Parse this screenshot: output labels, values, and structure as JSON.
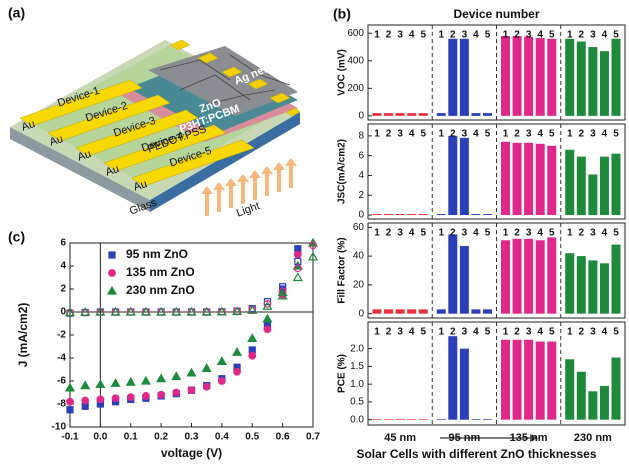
{
  "diagram": {
    "panel_label": "(a)",
    "layers": [
      "Ag network",
      "ZnO",
      "P3HT:PCBM",
      "PEDOT:PSS",
      "Glass"
    ],
    "electrode": "Au",
    "devices": [
      "Device-1",
      "Device-2",
      "Device-3",
      "Device-4",
      "Device-5"
    ],
    "light": "Light"
  },
  "chart_data": [
    {
      "type": "bar",
      "panel_label": "(b)",
      "title": "Device number",
      "ylabel": "VOC (mV)",
      "categories": [
        "1",
        "2",
        "3",
        "4",
        "5"
      ],
      "series": [
        {
          "color": "#e8303a",
          "values": [
            20,
            20,
            20,
            20,
            20
          ]
        },
        {
          "color": "#2b3fb8",
          "values": [
            20,
            560,
            560,
            20,
            20
          ]
        },
        {
          "color": "#e0288a",
          "values": [
            580,
            580,
            575,
            565,
            560
          ]
        },
        {
          "color": "#1f8a3c",
          "values": [
            560,
            540,
            500,
            470,
            560
          ]
        }
      ],
      "ylim": [
        -30,
        660
      ],
      "yticks": [
        0,
        200,
        400,
        600
      ]
    },
    {
      "type": "bar",
      "ylabel": "JSC(mA/cm2)",
      "categories": [
        "1",
        "2",
        "3",
        "4",
        "5"
      ],
      "series": [
        {
          "color": "#e8303a",
          "values": [
            0.1,
            0.1,
            0.1,
            0.1,
            0.1
          ]
        },
        {
          "color": "#2b3fb8",
          "values": [
            0.1,
            8.0,
            7.8,
            0.1,
            0.1
          ]
        },
        {
          "color": "#e0288a",
          "values": [
            7.4,
            7.3,
            7.3,
            7.2,
            7.0
          ]
        },
        {
          "color": "#1f8a3c",
          "values": [
            6.6,
            5.9,
            4.1,
            5.9,
            6.2
          ]
        }
      ],
      "ylim": [
        -0.4,
        9.2
      ],
      "yticks": [
        0,
        2,
        4,
        6,
        8
      ]
    },
    {
      "type": "bar",
      "ylabel": "Fill Factor (%)",
      "categories": [
        "1",
        "2",
        "3",
        "4",
        "5"
      ],
      "series": [
        {
          "color": "#e8303a",
          "values": [
            3,
            3,
            3,
            3,
            3
          ]
        },
        {
          "color": "#2b3fb8",
          "values": [
            3,
            55,
            47,
            3,
            3
          ]
        },
        {
          "color": "#e0288a",
          "values": [
            51,
            52,
            52,
            51,
            53
          ]
        },
        {
          "color": "#1f8a3c",
          "values": [
            42,
            40,
            37,
            35,
            48
          ]
        }
      ],
      "ylim": [
        -3,
        63
      ],
      "yticks": [
        0,
        20,
        40,
        60
      ]
    },
    {
      "type": "bar",
      "ylabel": "PCE (%)",
      "categories": [
        "1",
        "2",
        "3",
        "4",
        "5"
      ],
      "series": [
        {
          "color": "#e8303a",
          "values": [
            0.02,
            0.02,
            0.02,
            0.02,
            0.02
          ]
        },
        {
          "color": "#2b3fb8",
          "values": [
            0.02,
            2.35,
            2.0,
            0.02,
            0.02
          ]
        },
        {
          "color": "#e0288a",
          "values": [
            2.25,
            2.25,
            2.25,
            2.2,
            2.2
          ]
        },
        {
          "color": "#1f8a3c",
          "values": [
            1.7,
            1.35,
            0.8,
            0.95,
            1.75
          ]
        }
      ],
      "ylim": [
        -0.15,
        2.75
      ],
      "yticks": [
        {
          "value": 0,
          "label": "0.0"
        },
        0.5,
        {
          "value": 1,
          "label": "1.0"
        },
        1.5,
        {
          "value": 2,
          "label": "2.0"
        }
      ],
      "groups": [
        "45 nm",
        "95 nm",
        "135 nm",
        "230 nm"
      ],
      "xlabel": "Solar Cells with different ZnO thicknesses"
    },
    {
      "type": "scatter",
      "panel_label": "(c)",
      "xlabel": "voltage (V)",
      "ylabel": "J (mA/cm2)",
      "legend": "upper left",
      "zero_lines": true,
      "x": [
        -0.1,
        -0.05,
        0,
        0.05,
        0.1,
        0.15,
        0.2,
        0.25,
        0.3,
        0.35,
        0.4,
        0.45,
        0.5,
        0.55,
        0.6,
        0.65,
        0.7
      ],
      "series": [
        {
          "name": "95 nm ZnO",
          "color": "#2b3fb8",
          "marker": "square",
          "filled": true,
          "values": [
            -8.5,
            -8.2,
            -8.0,
            -7.8,
            -7.6,
            -7.5,
            -7.3,
            -7.1,
            -6.8,
            -6.4,
            -5.8,
            -4.8,
            -3.3,
            -1.0,
            2.0,
            5.5,
            null
          ]
        },
        {
          "name": "135 nm ZnO",
          "color": "#e0288a",
          "marker": "circle",
          "filled": true,
          "values": [
            -7.8,
            -7.7,
            -7.6,
            -7.5,
            -7.4,
            -7.3,
            -7.2,
            -7.0,
            -6.8,
            -6.5,
            -6.0,
            -5.2,
            -3.8,
            -1.5,
            1.5,
            5.0,
            null
          ]
        },
        {
          "name": "230 nm ZnO",
          "color": "#1f8a3c",
          "marker": "triangle",
          "filled": true,
          "values": [
            -6.6,
            -6.4,
            -6.3,
            -6.2,
            -6.1,
            -6.0,
            -5.8,
            -5.6,
            -5.3,
            -4.9,
            -4.3,
            -3.5,
            -2.3,
            -0.6,
            1.7,
            4.0,
            6.0
          ]
        },
        {
          "color": "#2b3fb8",
          "marker": "square",
          "filled": false,
          "values": [
            -0.1,
            -0.05,
            0,
            0,
            0,
            0,
            0,
            0,
            0,
            0,
            0.02,
            0.08,
            0.3,
            0.9,
            2.2,
            4.4,
            null
          ]
        },
        {
          "color": "#e0288a",
          "marker": "circle",
          "filled": false,
          "values": [
            -0.05,
            -0.03,
            0,
            0,
            0,
            0,
            0,
            0,
            0,
            0,
            0.02,
            0.06,
            0.2,
            0.7,
            1.8,
            3.8,
            5.8
          ]
        },
        {
          "color": "#1f8a3c",
          "marker": "triangle",
          "filled": false,
          "values": [
            -0.05,
            -0.02,
            0,
            0,
            0,
            0,
            0,
            0,
            0,
            0,
            0.01,
            0.04,
            0.15,
            0.5,
            1.4,
            3.0,
            4.8
          ]
        }
      ],
      "xlim": [
        -0.1,
        0.7
      ],
      "xticks": [
        -0.1,
        {
          "value": 0,
          "label": "0.0"
        },
        0.1,
        0.2,
        0.3,
        0.4,
        0.5,
        0.6,
        0.7
      ],
      "ylim": [
        -10,
        6
      ],
      "yticks": [
        -10,
        -8,
        -6,
        -4,
        -2,
        0,
        2,
        4,
        6
      ]
    }
  ]
}
